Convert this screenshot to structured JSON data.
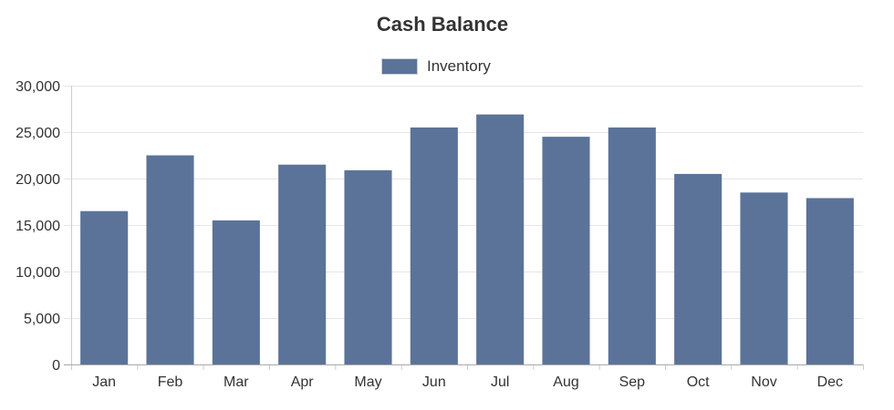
{
  "chart_data": {
    "type": "bar",
    "title": "Cash Balance",
    "xlabel": "",
    "ylabel": "",
    "categories": [
      "Jan",
      "Feb",
      "Mar",
      "Apr",
      "May",
      "Jun",
      "Jul",
      "Aug",
      "Sep",
      "Oct",
      "Nov",
      "Dec"
    ],
    "series": [
      {
        "name": "Inventory",
        "color": "#5b7399",
        "values": [
          16500,
          22500,
          15500,
          21500,
          20900,
          25500,
          26900,
          24500,
          25500,
          20500,
          18500,
          17900
        ]
      }
    ],
    "ylim": [
      0,
      30000
    ],
    "yticks": [
      0,
      5000,
      10000,
      15000,
      20000,
      25000,
      30000
    ],
    "ytick_labels": [
      "0",
      "5,000",
      "10,000",
      "15,000",
      "20,000",
      "25,000",
      "30,000"
    ],
    "grid": true,
    "legend_position": "top-center"
  }
}
